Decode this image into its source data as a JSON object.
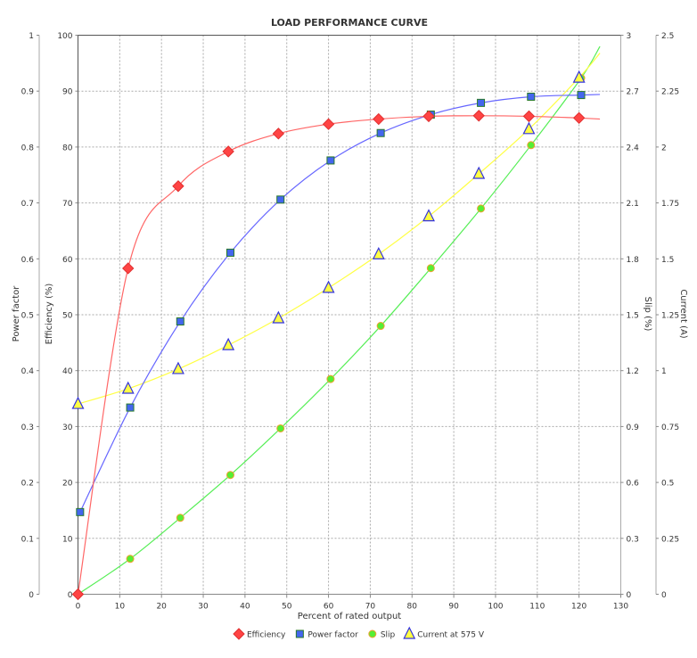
{
  "chart_data": {
    "type": "line",
    "title": "LOAD PERFORMANCE CURVE",
    "xlabel": "Percent of rated output",
    "xlim": [
      0,
      130
    ],
    "xticks": [
      0,
      10,
      20,
      30,
      40,
      50,
      60,
      70,
      80,
      90,
      100,
      110,
      120,
      130
    ],
    "axes": {
      "power_factor": {
        "label": "Power factor",
        "lim": [
          0,
          1
        ],
        "ticks": [
          "0",
          "0.1",
          "0.2",
          "0.3",
          "0.4",
          "0.5",
          "0.6",
          "0.7",
          "0.8",
          "0.9",
          "1"
        ],
        "side": "left-outer"
      },
      "efficiency": {
        "label": "Efficiency (%)",
        "lim": [
          0,
          100
        ],
        "ticks": [
          "0",
          "10",
          "20",
          "30",
          "40",
          "50",
          "60",
          "70",
          "80",
          "90",
          "100"
        ],
        "side": "left-inner"
      },
      "slip": {
        "label": "Slip (%)",
        "lim": [
          0,
          3
        ],
        "ticks": [
          "0",
          "0.3",
          "0.6",
          "0.9",
          "1.2",
          "1.5",
          "1.8",
          "2.1",
          "2.4",
          "2.7",
          "3"
        ],
        "side": "right-inner"
      },
      "current": {
        "label": "Current (A)",
        "lim": [
          0,
          2.5
        ],
        "ticks": [
          "0",
          "0.25",
          "0.5",
          "0.75",
          "1",
          "1.25",
          "1.5",
          "1.75",
          "2",
          "2.25",
          "2.5"
        ],
        "side": "right-outer"
      }
    },
    "grid": true,
    "legend_position": "bottom",
    "series": [
      {
        "name": "Efficiency",
        "axis": "efficiency",
        "color": "#ff4444",
        "line_color": "#ff6666",
        "marker": "diamond",
        "x": [
          0,
          12,
          24,
          36,
          48,
          60,
          72,
          84,
          96,
          108,
          120
        ],
        "y": [
          0,
          58.3,
          73,
          79.2,
          82.4,
          84.1,
          85,
          85.5,
          85.6,
          85.5,
          85.2
        ],
        "curve_end": [
          125,
          85
        ]
      },
      {
        "name": "Power factor",
        "axis": "power_factor",
        "color": "#4466ee",
        "line_color": "#6666ff",
        "marker": "square",
        "x": [
          0.5,
          12.5,
          24.5,
          36.5,
          48.5,
          60.5,
          72.5,
          84.5,
          96.5,
          108.5,
          120.5
        ],
        "y": [
          0.147,
          0.334,
          0.488,
          0.611,
          0.706,
          0.776,
          0.825,
          0.858,
          0.879,
          0.89,
          0.893
        ],
        "curve_end": [
          125,
          0.894
        ]
      },
      {
        "name": "Slip",
        "axis": "slip",
        "color": "#55ee33",
        "line_color": "#55ee55",
        "marker": "circle",
        "x": [
          0,
          12.5,
          24.5,
          36.5,
          48.5,
          60.5,
          72.5,
          84.5,
          96.5,
          108.5,
          120.5
        ],
        "y": [
          0,
          0.19,
          0.41,
          0.64,
          0.89,
          1.155,
          1.44,
          1.75,
          2.07,
          2.41,
          2.77
        ],
        "curve_end": [
          125,
          2.94
        ]
      },
      {
        "name": "Current at 575 V",
        "axis": "current",
        "color": "#ffff44",
        "line_color": "#ffff44",
        "marker": "triangle",
        "x": [
          0,
          12,
          24,
          36,
          48,
          60,
          72,
          84,
          96,
          108,
          120
        ],
        "y": [
          0.851,
          0.919,
          1.007,
          1.114,
          1.234,
          1.37,
          1.52,
          1.69,
          1.88,
          2.08,
          2.31
        ],
        "curve_end": [
          125,
          2.42
        ]
      }
    ]
  }
}
